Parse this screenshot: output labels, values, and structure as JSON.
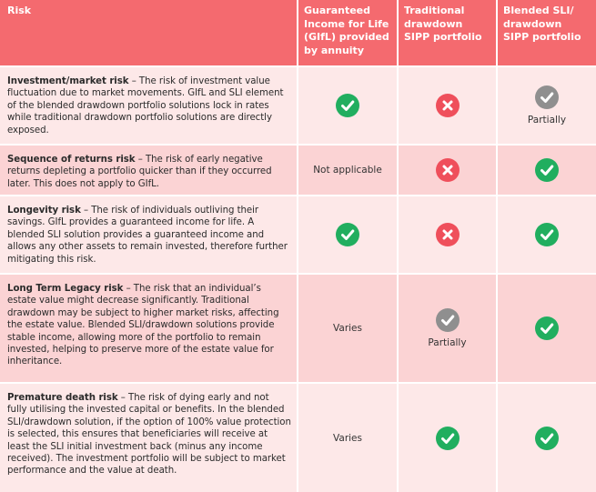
{
  "header": {
    "risk": "Risk",
    "col1": "Guaranteed Income for Life (GIfL) provided by annuity",
    "col2": "Traditional drawdown SIPP portfolio",
    "col3": "Blended SLI/ drawdown SIPP portfolio"
  },
  "rows": [
    {
      "title": "Investment/market risk",
      "text": "The risk of investment value fluctuation due to market movements. GIfL and SLI element of the blended drawdown portfolio solutions lock in rates while traditional drawdown portfolio solutions are directly exposed.",
      "col1": {
        "status": "check"
      },
      "col2": {
        "status": "cross"
      },
      "col3": {
        "status": "partial",
        "caption": "Partially"
      }
    },
    {
      "title": "Sequence of returns risk",
      "text": "The risk of early negative returns depleting a portfolio quicker than if they occurred later. This does not apply to GIfL.",
      "col1": {
        "status": "text",
        "caption": "Not applicable"
      },
      "col2": {
        "status": "cross"
      },
      "col3": {
        "status": "check"
      }
    },
    {
      "title": "Longevity risk",
      "text": "The risk of individuals outliving their savings. GIfL provides a guaranteed income for life. A blended SLI solution provides a guaranteed income and allows any other assets to remain invested, therefore further mitigating this risk.",
      "col1": {
        "status": "check"
      },
      "col2": {
        "status": "cross"
      },
      "col3": {
        "status": "check"
      }
    },
    {
      "title": "Long Term Legacy risk",
      "text": "The risk that an individual’s estate value might decrease significantly. Traditional drawdown may be subject to higher market risks, affecting the estate value. Blended SLI/drawdown solutions provide stable income, allowing more of the portfolio to remain invested, helping to preserve more of the estate value for inheritance.",
      "col1": {
        "status": "text",
        "caption": "Varies"
      },
      "col2": {
        "status": "partial",
        "caption": "Partially"
      },
      "col3": {
        "status": "check"
      }
    },
    {
      "title": "Premature death risk",
      "text": "The risk of dying early and not fully utilising the invested capital or benefits. In the blended SLI/drawdown solution, if the option of 100% value protection is selected, this ensures that beneficiaries will receive at least the SLI initial investment back (minus any income received). The investment portfolio will be subject to market performance and the value at death.",
      "col1": {
        "status": "text",
        "caption": "Varies"
      },
      "col2": {
        "status": "check"
      },
      "col3": {
        "status": "check"
      }
    }
  ],
  "colors": {
    "header": "#f46a6f",
    "row_light": "#fde8e8",
    "row_dark": "#fbd3d4",
    "check": "#21ae5f",
    "cross": "#ef4f5b",
    "partial": "#8f8f8f"
  }
}
